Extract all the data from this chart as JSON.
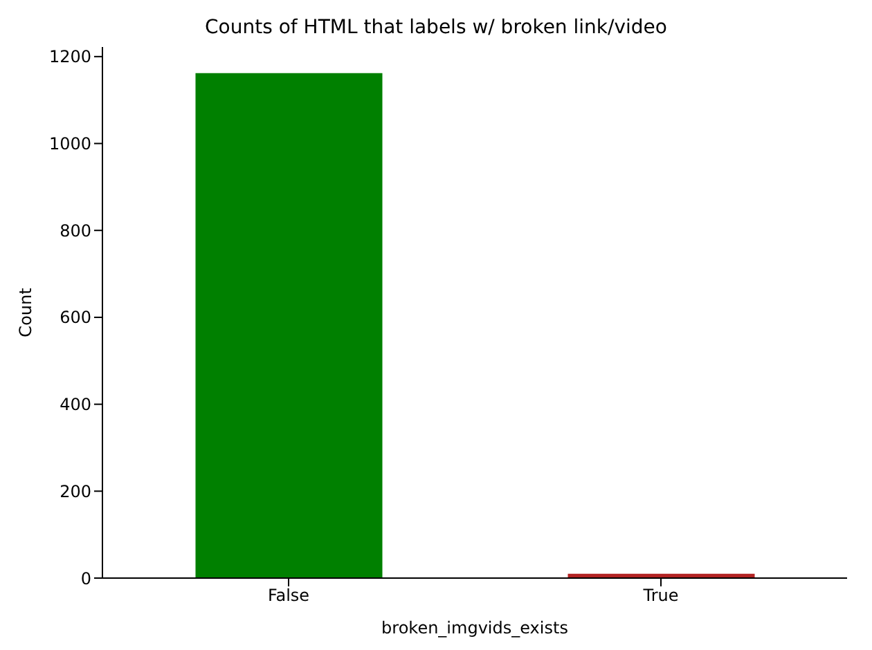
{
  "chart_data": {
    "type": "bar",
    "title": "Counts of HTML that labels w/ broken link/video",
    "xlabel": "broken_imgvids_exists",
    "ylabel": "Count",
    "categories": [
      "False",
      "True"
    ],
    "values": [
      1162,
      10
    ],
    "colors": [
      "#008000",
      "#b22222"
    ],
    "ylim": [
      0,
      1222
    ],
    "yticks": [
      0,
      200,
      400,
      600,
      800,
      1000,
      1200
    ],
    "grid": false,
    "legend": false
  }
}
